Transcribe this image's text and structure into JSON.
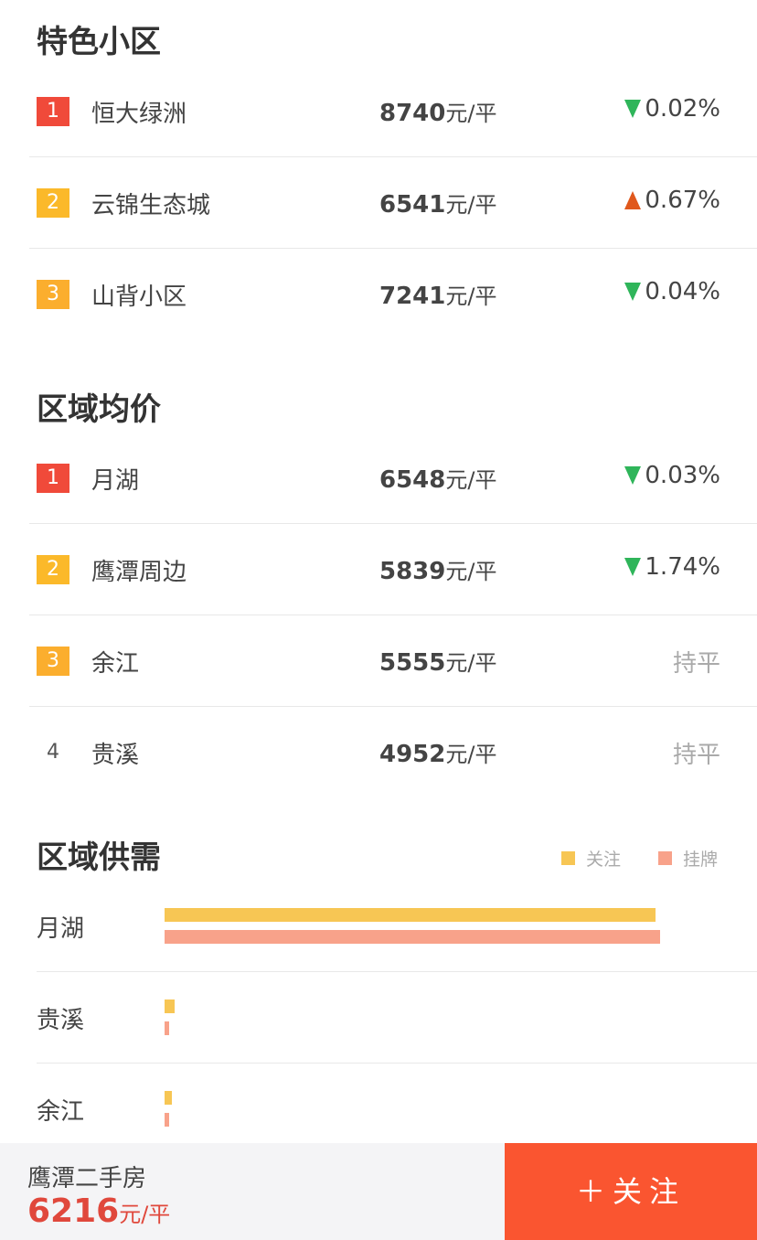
{
  "featured": {
    "title": "特色小区",
    "items": [
      {
        "rank": "1",
        "name": "恒大绿洲",
        "price": "8740",
        "unit": "元/平",
        "change": "0.02%",
        "dir": "down"
      },
      {
        "rank": "2",
        "name": "云锦生态城",
        "price": "6541",
        "unit": "元/平",
        "change": "0.67%",
        "dir": "up"
      },
      {
        "rank": "3",
        "name": "山背小区",
        "price": "7241",
        "unit": "元/平",
        "change": "0.04%",
        "dir": "down"
      }
    ]
  },
  "district": {
    "title": "区域均价",
    "items": [
      {
        "rank": "1",
        "name": "月湖",
        "price": "6548",
        "unit": "元/平",
        "change": "0.03%",
        "dir": "down"
      },
      {
        "rank": "2",
        "name": "鹰潭周边",
        "price": "5839",
        "unit": "元/平",
        "change": "1.74%",
        "dir": "down"
      },
      {
        "rank": "3",
        "name": "余江",
        "price": "5555",
        "unit": "元/平",
        "change": "持平",
        "dir": "flat"
      },
      {
        "rank": "4",
        "name": "贵溪",
        "price": "4952",
        "unit": "元/平",
        "change": "持平",
        "dir": "flat"
      }
    ]
  },
  "rank_colors": [
    "#f04a3a",
    "#fbb92a",
    "#fbae2e"
  ],
  "supply": {
    "title": "区域供需",
    "legend": [
      {
        "label": "关注",
        "color": "#f7c654"
      },
      {
        "label": "挂牌",
        "color": "#f8a28a"
      }
    ],
    "chart_data": {
      "type": "bar",
      "orientation": "horizontal",
      "categories": [
        "月湖",
        "贵溪",
        "余江"
      ],
      "series": [
        {
          "name": "关注",
          "values": [
            99,
            2,
            1.5
          ]
        },
        {
          "name": "挂牌",
          "values": [
            100,
            1,
            1
          ]
        }
      ]
    }
  },
  "bottom": {
    "title": "鹰潭二手房",
    "price": "6216",
    "unit": "元/平",
    "follow": "＋关注"
  }
}
